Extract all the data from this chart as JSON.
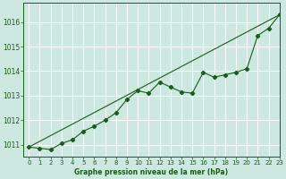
{
  "title": "Graphe pression niveau de la mer (hPa)",
  "bg_color": "#cce8e0",
  "grid_color": "#ffffff",
  "line_color": "#1a5c1a",
  "xlim": [
    -0.5,
    23
  ],
  "ylim": [
    1010.5,
    1016.8
  ],
  "yticks": [
    1011,
    1012,
    1013,
    1014,
    1015,
    1016
  ],
  "xticks": [
    0,
    1,
    2,
    3,
    4,
    5,
    6,
    7,
    8,
    9,
    10,
    11,
    12,
    13,
    14,
    15,
    16,
    17,
    18,
    19,
    20,
    21,
    22,
    23
  ],
  "trend_x": [
    0,
    23
  ],
  "trend_y": [
    1010.9,
    1016.3
  ],
  "series_x": [
    0,
    1,
    2,
    3,
    4,
    5,
    6,
    7,
    8,
    9,
    10,
    11,
    12,
    13,
    14,
    15,
    16,
    17,
    18,
    19,
    20,
    21,
    22,
    23
  ],
  "series_y": [
    1010.9,
    1010.85,
    1010.8,
    1011.05,
    1011.2,
    1011.55,
    1011.75,
    1012.0,
    1012.3,
    1012.85,
    1013.2,
    1013.1,
    1013.55,
    1013.35,
    1013.15,
    1013.1,
    1013.95,
    1013.75,
    1013.85,
    1013.95,
    1014.1,
    1015.45,
    1015.75,
    1016.3
  ]
}
